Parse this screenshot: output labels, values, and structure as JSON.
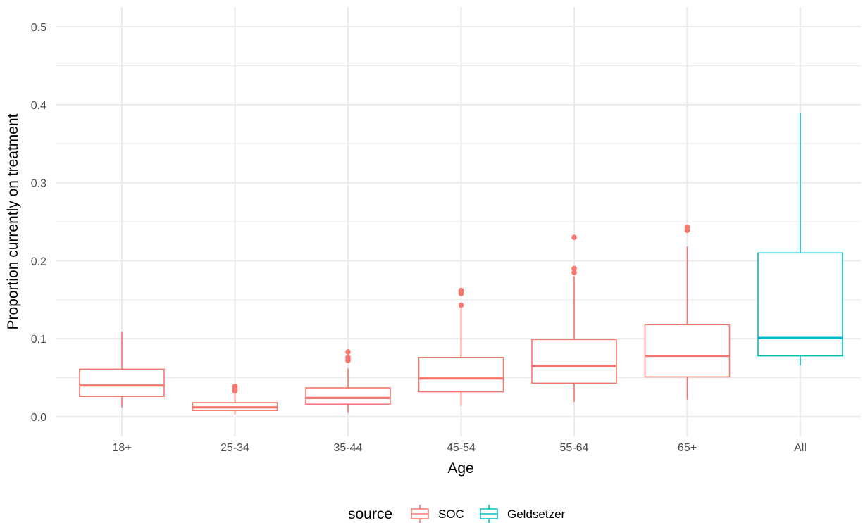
{
  "chart_data": {
    "type": "boxplot",
    "xlabel": "Age",
    "ylabel": "Proportion currently on treatment",
    "ylim": [
      -0.03,
      0.52
    ],
    "yticks": [
      0.0,
      0.1,
      0.2,
      0.3,
      0.4,
      0.5
    ],
    "ytick_labels": [
      "0.0",
      "0.1",
      "0.2",
      "0.3",
      "0.4",
      "0.5"
    ],
    "grid": true,
    "legend": {
      "title": "source",
      "placement": "bottom",
      "entries": [
        {
          "name": "SOC",
          "color": "#F8766D"
        },
        {
          "name": "Geldsetzer",
          "color": "#00BFC4"
        }
      ]
    },
    "categories": [
      "18+",
      "25-34",
      "35-44",
      "45-54",
      "55-64",
      "65+",
      "All"
    ],
    "boxes": [
      {
        "category": "18+",
        "source": "SOC",
        "min": 0.012,
        "q1": 0.026,
        "median": 0.04,
        "q3": 0.061,
        "max": 0.109,
        "outliers": []
      },
      {
        "category": "25-34",
        "source": "SOC",
        "min": 0.003,
        "q1": 0.008,
        "median": 0.012,
        "q3": 0.018,
        "max": 0.03,
        "outliers": [
          0.033,
          0.035,
          0.037,
          0.039
        ]
      },
      {
        "category": "35-44",
        "source": "SOC",
        "min": 0.005,
        "q1": 0.016,
        "median": 0.024,
        "q3": 0.037,
        "max": 0.062,
        "outliers": [
          0.072,
          0.074,
          0.076,
          0.083
        ]
      },
      {
        "category": "45-54",
        "source": "SOC",
        "min": 0.014,
        "q1": 0.032,
        "median": 0.049,
        "q3": 0.076,
        "max": 0.14,
        "outliers": [
          0.143,
          0.158,
          0.16,
          0.162
        ]
      },
      {
        "category": "55-64",
        "source": "SOC",
        "min": 0.019,
        "q1": 0.043,
        "median": 0.065,
        "q3": 0.099,
        "max": 0.18,
        "outliers": [
          0.185,
          0.19,
          0.23
        ]
      },
      {
        "category": "65+",
        "source": "SOC",
        "min": 0.022,
        "q1": 0.051,
        "median": 0.078,
        "q3": 0.118,
        "max": 0.218,
        "outliers": [
          0.239,
          0.243
        ]
      },
      {
        "category": "All",
        "source": "Geldsetzer",
        "min": 0.066,
        "q1": 0.078,
        "median": 0.101,
        "q3": 0.21,
        "max": 0.39,
        "outliers": []
      }
    ]
  }
}
